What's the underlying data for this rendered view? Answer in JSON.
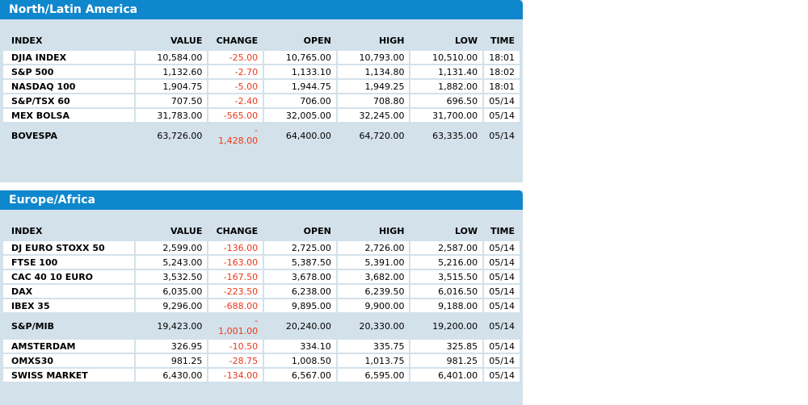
{
  "columns": [
    "INDEX",
    "VALUE",
    "CHANGE",
    "OPEN",
    "HIGH",
    "LOW",
    "TIME"
  ],
  "sections": [
    {
      "title": "North/Latin America",
      "rows": [
        {
          "index": "DJIA INDEX",
          "value": "10,584.00",
          "change": "-25.00",
          "open": "10,765.00",
          "high": "10,793.00",
          "low": "10,510.00",
          "time": "18:01"
        },
        {
          "index": "S&P 500",
          "value": "1,132.60",
          "change": "-2.70",
          "open": "1,133.10",
          "high": "1,134.80",
          "low": "1,131.40",
          "time": "18:02"
        },
        {
          "index": "NASDAQ 100",
          "value": "1,904.75",
          "change": "-5.00",
          "open": "1,944.75",
          "high": "1,949.25",
          "low": "1,882.00",
          "time": "18:01"
        },
        {
          "index": "S&P/TSX 60",
          "value": "707.50",
          "change": "-2.40",
          "open": "706.00",
          "high": "708.80",
          "low": "696.50",
          "time": "05/14"
        },
        {
          "index": "MEX BOLSA",
          "value": "31,783.00",
          "change": "-565.00",
          "open": "32,005.00",
          "high": "32,245.00",
          "low": "31,700.00",
          "time": "05/14"
        },
        {
          "index": "BOVESPA",
          "value": "63,726.00",
          "change_sign": "-",
          "change": "1,428.00",
          "open": "64,400.00",
          "high": "64,720.00",
          "low": "63,335.00",
          "time": "05/14"
        }
      ]
    },
    {
      "title": "Europe/Africa",
      "rows": [
        {
          "index": "DJ EURO STOXX 50",
          "value": "2,599.00",
          "change": "-136.00",
          "open": "2,725.00",
          "high": "2,726.00",
          "low": "2,587.00",
          "time": "05/14"
        },
        {
          "index": "FTSE 100",
          "value": "5,243.00",
          "change": "-163.00",
          "open": "5,387.50",
          "high": "5,391.00",
          "low": "5,216.00",
          "time": "05/14"
        },
        {
          "index": "CAC 40 10 EURO",
          "value": "3,532.50",
          "change": "-167.50",
          "open": "3,678.00",
          "high": "3,682.00",
          "low": "3,515.50",
          "time": "05/14"
        },
        {
          "index": "DAX",
          "value": "6,035.00",
          "change": "-223.50",
          "open": "6,238.00",
          "high": "6,239.50",
          "low": "6,016.50",
          "time": "05/14"
        },
        {
          "index": "IBEX 35",
          "value": "9,296.00",
          "change": "-688.00",
          "open": "9,895.00",
          "high": "9,900.00",
          "low": "9,188.00",
          "time": "05/14"
        },
        {
          "index": "S&P/MIB",
          "value": "19,423.00",
          "change_sign": "-",
          "change": "1,001.00",
          "open": "20,240.00",
          "high": "20,330.00",
          "low": "19,200.00",
          "time": "05/14"
        },
        {
          "index": "AMSTERDAM",
          "value": "326.95",
          "change": "-10.50",
          "open": "334.10",
          "high": "335.75",
          "low": "325.85",
          "time": "05/14"
        },
        {
          "index": "OMXS30",
          "value": "981.25",
          "change": "-28.75",
          "open": "1,008.50",
          "high": "1,013.75",
          "low": "981.25",
          "time": "05/14"
        },
        {
          "index": "SWISS MARKET",
          "value": "6,430.00",
          "change": "-134.00",
          "open": "6,567.00",
          "high": "6,595.00",
          "low": "6,401.00",
          "time": "05/14"
        }
      ]
    }
  ],
  "colors": {
    "header_bg": "#0e87cd",
    "panel_bg": "#d3e1ea",
    "negative": "#e8391a"
  }
}
